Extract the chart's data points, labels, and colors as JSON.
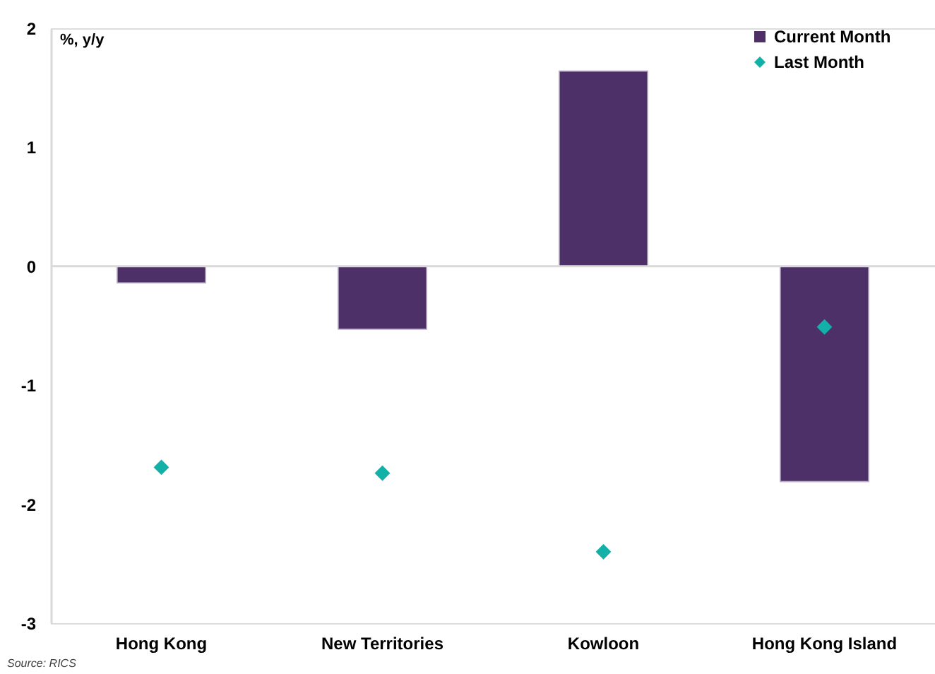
{
  "chart_data": {
    "type": "bar",
    "ylabel": "%, y/y",
    "categories": [
      "Hong Kong",
      "New Territories",
      "Kowloon",
      "Hong Kong Island"
    ],
    "series": [
      {
        "name": "Current Month",
        "color": "#4e3068",
        "values": [
          -0.14,
          -0.53,
          1.64,
          -1.81
        ]
      },
      {
        "name": "Last Month",
        "type": "scatter",
        "color": "#12b0a6",
        "values": [
          -1.69,
          -1.74,
          -2.4,
          -0.51
        ]
      }
    ],
    "ylim": [
      -3,
      2
    ],
    "yticks": [
      -3,
      -2,
      -1,
      0,
      1,
      2
    ],
    "legend": "top right",
    "marker": "diamond",
    "ref_lines": [
      {
        "axis": "y",
        "value": 0,
        "color": "#d9d9d9"
      }
    ],
    "annotations": [
      "Source: RICS"
    ]
  }
}
